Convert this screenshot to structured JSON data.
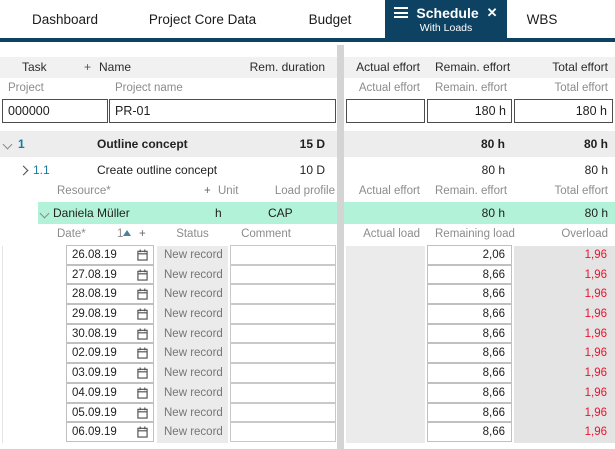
{
  "tabs": {
    "items": [
      {
        "label": "Dashboard"
      },
      {
        "label": "Project Core Data"
      },
      {
        "label": "Budget"
      },
      {
        "label": "Schedule",
        "sublabel": "With Loads",
        "active": true,
        "close_icon": "✕"
      },
      {
        "label": "WBS"
      }
    ]
  },
  "colors": {
    "active_tab": "#0e4263",
    "task_number": "#1879a5",
    "resource_highlight": "#b2f2d9",
    "overload_text": "#e8142d",
    "row_shade": "#ededed",
    "cell_shade": "#ebebeb"
  },
  "task_table": {
    "header": {
      "task": "Task",
      "plus": "+",
      "name": "Name",
      "rem_duration": "Rem. duration",
      "actual_effort": "Actual effort",
      "remain_effort": "Remain. effort",
      "total_effort": "Total effort"
    },
    "subheader": {
      "project": "Project",
      "project_name": "Project name",
      "actual_effort": "Actual effort",
      "remain_effort": "Remain. effort",
      "total_effort": "Total effort"
    },
    "project_row": {
      "id": "000000",
      "name": "PR-01",
      "actual": "",
      "remain": "180 h",
      "total": "180 h"
    },
    "tasks": [
      {
        "number": "1",
        "name": "Outline concept",
        "duration": "15 D",
        "actual": "",
        "remain": "80 h",
        "total": "80 h"
      },
      {
        "number": "1.1",
        "name": "Create outline concept",
        "duration": "10 D",
        "actual": "",
        "remain": "80 h",
        "total": "80 h"
      }
    ],
    "resource_header": {
      "resource": "Resource*",
      "plus": "+",
      "unit": "Unit",
      "load_profile": "Load profile",
      "actual_effort": "Actual effort",
      "remain_effort": "Remain. effort",
      "total_effort": "Total effort"
    },
    "resource_row": {
      "name": "Daniela Müller",
      "unit": "h",
      "load_profile": "CAP",
      "actual": "",
      "remain": "80 h",
      "total": "80 h"
    }
  },
  "load_table": {
    "header": {
      "date": "Date*",
      "sort_number": "1",
      "plus": "+",
      "status": "Status",
      "comment": "Comment",
      "actual_load": "Actual load",
      "remaining_load": "Remaining load",
      "overload": "Overload"
    },
    "rows": [
      {
        "date": "26.08.19",
        "status": "New record",
        "comment": "",
        "actual": "",
        "remaining": "2,06",
        "overload": "1,96"
      },
      {
        "date": "27.08.19",
        "status": "New record",
        "comment": "",
        "actual": "",
        "remaining": "8,66",
        "overload": "1,96"
      },
      {
        "date": "28.08.19",
        "status": "New record",
        "comment": "",
        "actual": "",
        "remaining": "8,66",
        "overload": "1,96"
      },
      {
        "date": "29.08.19",
        "status": "New record",
        "comment": "",
        "actual": "",
        "remaining": "8,66",
        "overload": "1,96"
      },
      {
        "date": "30.08.19",
        "status": "New record",
        "comment": "",
        "actual": "",
        "remaining": "8,66",
        "overload": "1,96"
      },
      {
        "date": "02.09.19",
        "status": "New record",
        "comment": "",
        "actual": "",
        "remaining": "8,66",
        "overload": "1,96"
      },
      {
        "date": "03.09.19",
        "status": "New record",
        "comment": "",
        "actual": "",
        "remaining": "8,66",
        "overload": "1,96"
      },
      {
        "date": "04.09.19",
        "status": "New record",
        "comment": "",
        "actual": "",
        "remaining": "8,66",
        "overload": "1,96"
      },
      {
        "date": "05.09.19",
        "status": "New record",
        "comment": "",
        "actual": "",
        "remaining": "8,66",
        "overload": "1,96"
      },
      {
        "date": "06.09.19",
        "status": "New record",
        "comment": "",
        "actual": "",
        "remaining": "8,66",
        "overload": "1,96"
      }
    ]
  }
}
